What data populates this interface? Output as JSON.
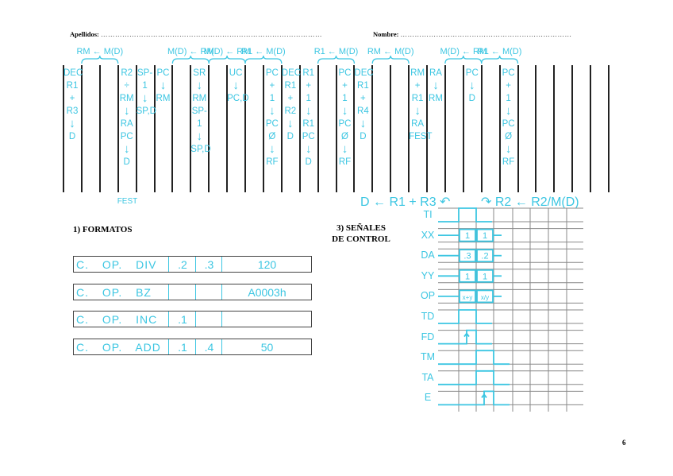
{
  "header": {
    "surname_label": "Apellidos:",
    "name_label": "Nombre:"
  },
  "page_number": "6",
  "ink_color": "#3cc6e2",
  "bar_count": 31,
  "braces": [
    {
      "from": 1,
      "to": 3,
      "label": "RM ← M(D)"
    },
    {
      "from": 6,
      "to": 8,
      "label": "M(D) ← RM"
    },
    {
      "from": 8,
      "to": 10,
      "label": "M(D) ← RM"
    },
    {
      "from": 10,
      "to": 12,
      "label": "R1 ← M(D)"
    },
    {
      "from": 14,
      "to": 16,
      "label": "R1 ← M(D)"
    },
    {
      "from": 17,
      "to": 19,
      "label": "RM ← M(D)"
    },
    {
      "from": 21,
      "to": 23,
      "label": "M(D) ← RM"
    },
    {
      "from": 23,
      "to": 25,
      "label": "R1 ← M(D)"
    }
  ],
  "columns": [
    {
      "index": 0,
      "lines": [
        "DEC",
        "R1",
        "+",
        "R3",
        "↓",
        "D"
      ]
    },
    {
      "index": 3,
      "lines": [
        "R2",
        "÷",
        "RM",
        "↓",
        "RA",
        "PC",
        "↓",
        "D"
      ],
      "below": "FEST"
    },
    {
      "index": 4,
      "lines": [
        "SP-1",
        "↓",
        "SP,D"
      ]
    },
    {
      "index": 5,
      "lines": [
        "PC",
        "↓",
        "RM"
      ]
    },
    {
      "index": 7,
      "lines": [
        "SR",
        "↓",
        "RM",
        "SP-1",
        "↓",
        "SP,D"
      ]
    },
    {
      "index": 9,
      "lines": [
        "UC",
        "↓",
        "PC,D"
      ]
    },
    {
      "index": 11,
      "lines": [
        "PC",
        "+",
        "1",
        "↓",
        "PC",
        "Ø",
        "↓",
        "RF"
      ]
    },
    {
      "index": 12,
      "lines": [
        "DEC",
        "R1",
        "+",
        "R2",
        "↓",
        "D"
      ]
    },
    {
      "index": 13,
      "lines": [
        "R1",
        "+",
        "1",
        "↓",
        "R1",
        "PC",
        "↓",
        "D"
      ]
    },
    {
      "index": 15,
      "lines": [
        "PC",
        "+",
        "1",
        "↓",
        "PC",
        "Ø",
        "↓",
        "RF"
      ]
    },
    {
      "index": 16,
      "lines": [
        "DEC",
        "R1",
        "+",
        "R4",
        "↓",
        "D"
      ]
    },
    {
      "index": 19,
      "lines": [
        "RM",
        "+",
        "R1",
        "↓",
        "RA",
        "FEST"
      ]
    },
    {
      "index": 20,
      "lines": [
        "RA",
        "↓",
        "RM"
      ]
    },
    {
      "index": 22,
      "lines": [
        "PC",
        "↓",
        "D"
      ]
    },
    {
      "index": 24,
      "lines": [
        "PC",
        "+",
        "1",
        "↓",
        "PC",
        "Ø",
        "↓",
        "RF"
      ]
    }
  ],
  "annotations": {
    "left": "D ← R1 + R3 ↶",
    "right": "↷ R2 ← R2/M(D)"
  },
  "sections": {
    "formats_title": "1) FORMATOS",
    "signals_title_1": "3) SEÑALES",
    "signals_title_2": "DE CONTROL"
  },
  "formats": [
    {
      "op": "C. OP. DIV",
      "f1": ".2",
      "f2": ".3",
      "f3": "120"
    },
    {
      "op": "C. OP. BZ",
      "f1": "",
      "f2": "",
      "f3": "A0003h"
    },
    {
      "op": "C. OP. INC",
      "f1": ".1",
      "f2": "",
      "f3": ""
    },
    {
      "op": "C. OP. ADD",
      "f1": ".1",
      "f2": ".4",
      "f3": "50"
    }
  ],
  "signals": [
    {
      "name": "TI",
      "type": "pulse",
      "cycles": [
        1
      ]
    },
    {
      "name": "XX",
      "type": "bus",
      "values": [
        "1",
        "1"
      ]
    },
    {
      "name": "DA",
      "type": "bus",
      "values": [
        ".3",
        ".2"
      ]
    },
    {
      "name": "YY",
      "type": "bus",
      "values": [
        "1",
        "1"
      ]
    },
    {
      "name": "OP",
      "type": "bus",
      "values": [
        "x+y",
        "x/y"
      ]
    },
    {
      "name": "TD",
      "type": "pulse",
      "cycles": [
        1
      ]
    },
    {
      "name": "FD",
      "type": "edge",
      "cycles": [
        1
      ]
    },
    {
      "name": "TM",
      "type": "pulse",
      "cycles": [
        2
      ]
    },
    {
      "name": "TA",
      "type": "pulse",
      "cycles": [
        2
      ]
    },
    {
      "name": "E",
      "type": "edge",
      "cycles": [
        2
      ]
    }
  ]
}
